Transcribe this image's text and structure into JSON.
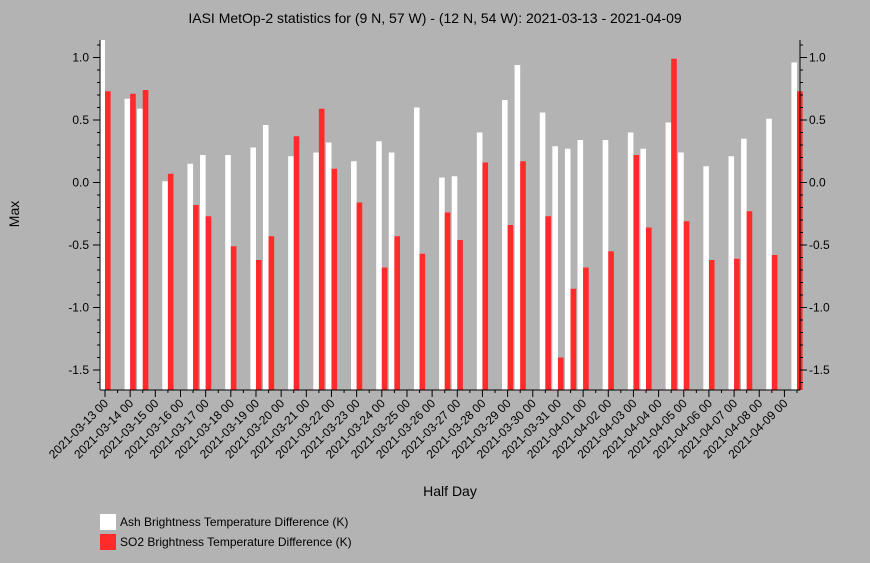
{
  "chart_data": {
    "type": "bar",
    "title": "IASI MetOp-2 statistics for (9 N, 57 W) - (12 N, 54 W): 2021-03-13 - 2021-04-09",
    "xlabel": "Half Day",
    "ylabel": "Max",
    "ylim": [
      -1.66,
      1.14
    ],
    "yticks": [
      -1.5,
      -1.0,
      -0.5,
      0.0,
      0.5,
      1.0
    ],
    "ytick_labels": [
      "-1.5",
      "-1.0",
      "-0.5",
      "0.0",
      "0.5",
      "1.0"
    ],
    "x_tick_labels": [
      "2021-03-13 00",
      "2021-03-14 00",
      "2021-03-15 00",
      "2021-03-16 00",
      "2021-03-17 00",
      "2021-03-18 00",
      "2021-03-19 00",
      "2021-03-20 00",
      "2021-03-21 00",
      "2021-03-22 00",
      "2021-03-23 00",
      "2021-03-24 00",
      "2021-03-25 00",
      "2021-03-26 00",
      "2021-03-27 00",
      "2021-03-28 00",
      "2021-03-29 00",
      "2021-03-30 00",
      "2021-03-31 00",
      "2021-04-01 00",
      "2021-04-02 00",
      "2021-04-03 00",
      "2021-04-04 00",
      "2021-04-05 00",
      "2021-04-06 00",
      "2021-04-07 00",
      "2021-04-08 00",
      "2021-04-09 00"
    ],
    "grid": false,
    "legend_position": "bottom-left",
    "series": [
      {
        "name": "Ash Brightness Temperature Difference (K)",
        "color": "#ffffff",
        "values": [
          1.15,
          null,
          0.67,
          0.59,
          null,
          0.01,
          null,
          0.15,
          0.22,
          null,
          0.22,
          null,
          0.28,
          0.46,
          null,
          0.21,
          null,
          0.24,
          0.32,
          null,
          0.17,
          null,
          0.33,
          0.24,
          null,
          0.6,
          null,
          0.04,
          0.05,
          null,
          0.4,
          null,
          0.66,
          0.94,
          null,
          0.56,
          0.29,
          0.27,
          0.34,
          null,
          0.34,
          null,
          0.4,
          0.27,
          null,
          0.48,
          0.24,
          null,
          0.13,
          null,
          0.21,
          0.35,
          null,
          0.51,
          null,
          0.96
        ]
      },
      {
        "name": "SO2 Brightness Temperature Difference (K)",
        "color": "#ff2a2a",
        "values": [
          0.73,
          null,
          0.71,
          0.74,
          null,
          0.07,
          null,
          -0.18,
          -0.27,
          null,
          -0.51,
          null,
          -0.62,
          -0.43,
          null,
          0.37,
          null,
          0.59,
          0.11,
          null,
          -0.16,
          null,
          -0.68,
          -0.43,
          null,
          -0.57,
          null,
          -0.24,
          -0.46,
          null,
          0.16,
          null,
          -0.34,
          0.17,
          null,
          -0.27,
          -1.4,
          -0.85,
          -0.68,
          null,
          -0.55,
          null,
          0.22,
          -0.36,
          null,
          0.99,
          -0.31,
          null,
          -0.62,
          null,
          -0.61,
          -0.23,
          null,
          -0.58,
          null,
          0.73
        ]
      }
    ]
  }
}
